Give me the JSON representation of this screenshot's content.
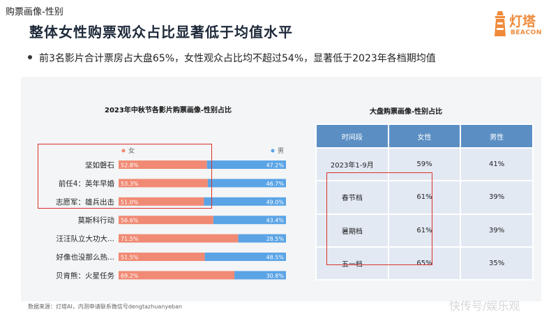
{
  "page_label": "购票画像-性别",
  "title": "整体女性购票观众占比显著低于均值水平",
  "logo": {
    "cn": "灯塔",
    "en": "BEACON"
  },
  "bullet": "前3名影片合计票房占大盘65%，女性观众占比均不超过54%，显著低于2023年各档期均值",
  "chart_data": {
    "type": "bar",
    "orientation": "horizontal",
    "stacked": true,
    "title": "2023年中秋节各影片购票画像-性别占比",
    "categories": [
      "坚如磐石",
      "前任4：英年早婚",
      "志愿军：雄兵出击",
      "莫斯科行动",
      "汪汪队立大功大...",
      "好像也没那么热...",
      "贝肯熊：火星任务"
    ],
    "series": [
      {
        "name": "女",
        "color": "#f08a74",
        "values": [
          52.8,
          53.3,
          51.0,
          56.6,
          71.5,
          51.5,
          69.2
        ],
        "labels": [
          "52.8%",
          "53.3%",
          "51.0%",
          "56.6%",
          "71.5%",
          "51.5%",
          "69.2%"
        ]
      },
      {
        "name": "男",
        "color": "#5aa4e6",
        "values": [
          47.2,
          46.7,
          49.0,
          43.4,
          28.5,
          48.5,
          30.8
        ],
        "labels": [
          "47.2%",
          "46.7%",
          "49.0%",
          "43.4%",
          "28.5%",
          "48.5%",
          "30.8%"
        ]
      }
    ],
    "xlim": [
      0,
      100
    ],
    "legend": "top"
  },
  "table": {
    "title": "大盘购票画像-性别占比",
    "headers": [
      "时间段",
      "女性",
      "男性"
    ],
    "rows": [
      [
        "2023年1-9月",
        "59%",
        "41%"
      ],
      [
        "春节档",
        "61%",
        "39%"
      ],
      [
        "暑期档",
        "61%",
        "39%"
      ],
      [
        "五一档",
        "65%",
        "35%"
      ]
    ]
  },
  "source": "数据来源：灯塔AI，内测申请联系微信号dengtazhuanyeban",
  "watermark": "快传号/娱乐观"
}
